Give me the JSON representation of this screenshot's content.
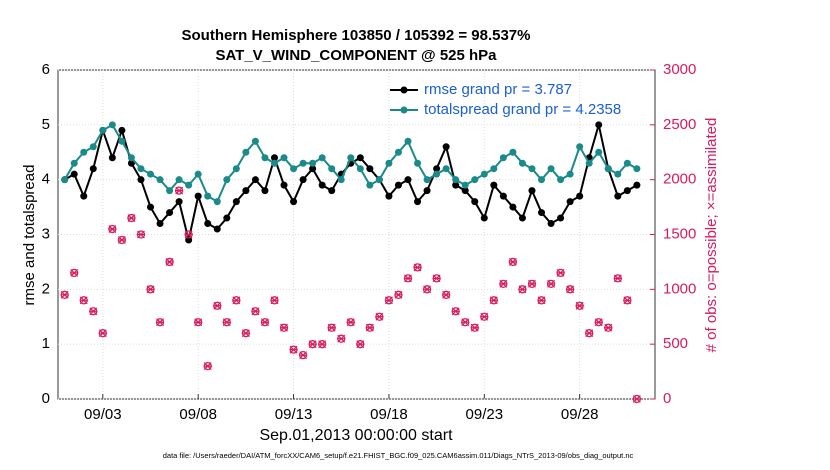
{
  "chart_data": {
    "type": "line",
    "title": "Southern Hemisphere 103850 / 105392 = 98.537%",
    "subtitle": "SAT_V_WIND_COMPONENT @ 525 hPa",
    "xlabel": "Sep.01,2013 00:00:00 start",
    "ylabel": "rmse and totalspread",
    "y2label": "# of obs: o=possible; ×=assimilated",
    "note": "data file: /Users/raeder/DAI/ATM_forcXX/CAM6_setup/f.e21.FHIST_BGC.f09_025.CAM6assim.011/Diags_NTrS_2013-09/obs_diag_output.nc",
    "x": [
      1,
      1.5,
      2,
      2.5,
      3,
      3.5,
      4,
      4.5,
      5,
      5.5,
      6,
      6.5,
      7,
      7.5,
      8,
      8.5,
      9,
      9.5,
      10,
      10.5,
      11,
      11.5,
      12,
      12.5,
      13,
      13.5,
      14,
      14.5,
      15,
      15.5,
      16,
      16.5,
      17,
      17.5,
      18,
      18.5,
      19,
      19.5,
      20,
      20.5,
      21,
      21.5,
      22,
      22.5,
      23,
      23.5,
      24,
      24.5,
      25,
      25.5,
      26,
      26.5,
      27,
      27.5,
      28,
      28.5,
      29,
      29.5,
      30,
      30.5,
      31
    ],
    "xlim": [
      0.65,
      31.95
    ],
    "xticks": [
      {
        "value": 3,
        "label": "09/03"
      },
      {
        "value": 8,
        "label": "09/08"
      },
      {
        "value": 13,
        "label": "09/13"
      },
      {
        "value": 18,
        "label": "09/18"
      },
      {
        "value": 23,
        "label": "09/23"
      },
      {
        "value": 28,
        "label": "09/28"
      }
    ],
    "ylim": [
      0,
      6
    ],
    "yticks": [
      0,
      1,
      2,
      3,
      4,
      5,
      6
    ],
    "y2lim": [
      0,
      3000
    ],
    "y2ticks": [
      0,
      500,
      1000,
      1500,
      2000,
      2500,
      3000
    ],
    "grid": true,
    "legend": "upper right",
    "series": [
      {
        "name": "rmse grand pr = 3.787",
        "color": "#000000",
        "values": [
          4.0,
          4.1,
          3.7,
          4.2,
          4.9,
          4.4,
          4.9,
          4.3,
          4.0,
          3.5,
          3.2,
          3.4,
          3.6,
          2.9,
          3.7,
          3.2,
          3.1,
          3.3,
          3.6,
          3.8,
          4.0,
          3.8,
          4.4,
          3.9,
          3.6,
          4.0,
          4.2,
          3.9,
          3.8,
          4.1,
          4.3,
          4.4,
          4.2,
          4.0,
          3.7,
          3.9,
          4.0,
          3.6,
          3.8,
          4.2,
          4.6,
          3.9,
          3.8,
          3.6,
          3.3,
          3.9,
          3.7,
          3.5,
          3.3,
          3.8,
          3.4,
          3.2,
          3.3,
          3.6,
          3.7,
          4.4,
          5.0,
          4.2,
          3.7,
          3.8,
          3.9
        ]
      },
      {
        "name": "totalspread grand pr = 4.2358",
        "color": "#1a8a8a",
        "values": [
          4.0,
          4.3,
          4.5,
          4.6,
          4.9,
          5.0,
          4.7,
          4.4,
          4.2,
          4.1,
          4.0,
          3.8,
          4.0,
          3.9,
          4.1,
          3.7,
          3.6,
          4.0,
          4.2,
          4.5,
          4.7,
          4.4,
          4.3,
          4.4,
          4.2,
          4.3,
          4.3,
          4.4,
          4.2,
          4.0,
          4.4,
          4.2,
          3.9,
          4.0,
          4.3,
          4.5,
          4.7,
          4.3,
          4.0,
          4.1,
          4.2,
          4.0,
          3.9,
          4.0,
          4.1,
          4.2,
          4.4,
          4.5,
          4.3,
          4.2,
          4.0,
          4.2,
          4.0,
          4.1,
          4.6,
          4.3,
          4.5,
          4.2,
          4.1,
          4.3,
          4.2
        ]
      },
      {
        "color": "#d81b60",
        "axis": "y2",
        "values": [
          950,
          1150,
          900,
          800,
          600,
          1550,
          1450,
          1650,
          1500,
          1000,
          700,
          1250,
          1900,
          1500,
          700,
          300,
          850,
          700,
          900,
          600,
          800,
          700,
          900,
          650,
          450,
          400,
          500,
          500,
          650,
          550,
          700,
          500,
          650,
          750,
          900,
          950,
          1100,
          1200,
          1000,
          1100,
          950,
          800,
          700,
          650,
          750,
          900,
          1050,
          1250,
          1000,
          1050,
          900,
          1050,
          1150,
          1000,
          850,
          600,
          700,
          650,
          1100,
          900,
          0
        ]
      }
    ]
  }
}
